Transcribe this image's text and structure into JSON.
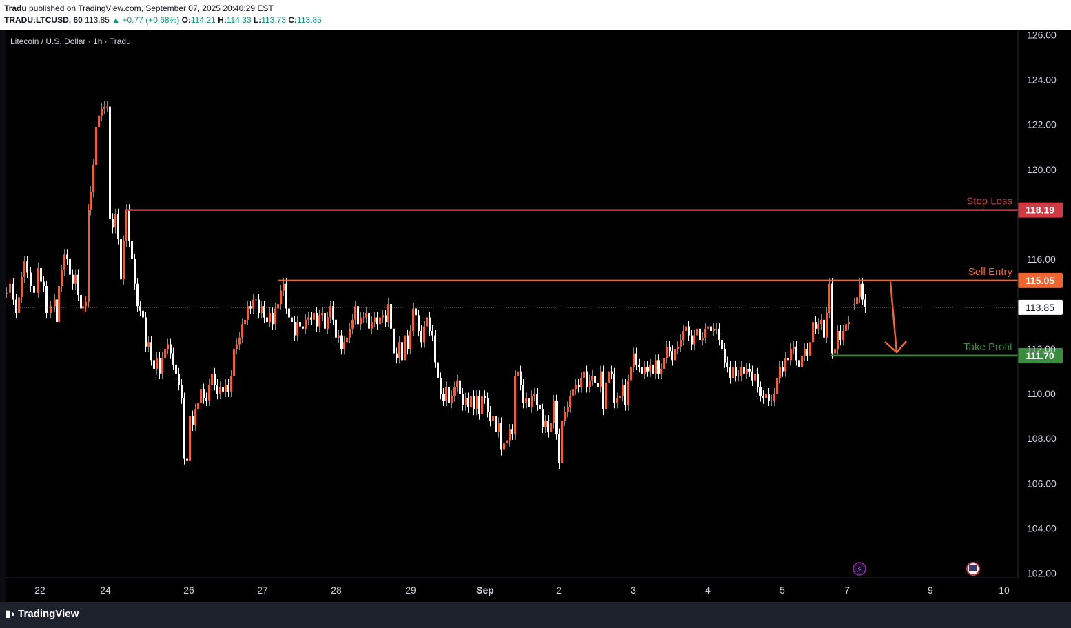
{
  "header": {
    "author": "Tradu",
    "published_text": "published on TradingView.com, September 07, 2025 20:40:29 EST",
    "symbol": "TRADU:LTCUSD, 60",
    "last": "113.85",
    "change": "▲ +0.77 (+0.68%)",
    "o_label": "O:",
    "o": "114.21",
    "h_label": "H:",
    "h": "114.33",
    "l_label": "L:",
    "l": "113.73",
    "c_label": "C:",
    "c": "113.85"
  },
  "footer": {
    "brand": "TradingView"
  },
  "colors": {
    "up": "#e8613a",
    "down": "#ffffff",
    "stop": "#d03a44",
    "entry": "#f0652f",
    "target": "#388e3c",
    "accent": "#089981"
  },
  "chart_data": {
    "type": "candlestick",
    "title": "Litecoin / U.S. Dollar · 1h · Tradu",
    "ylim": [
      101.8,
      126.2
    ],
    "y_ticks": [
      "102.00",
      "104.00",
      "106.00",
      "108.00",
      "110.00",
      "112.00",
      "116.00",
      "120.00",
      "122.00",
      "124.00",
      "126.00"
    ],
    "x_ticks": [
      "22",
      "24",
      "26",
      "27",
      "28",
      "29",
      "Sep",
      "2",
      "3",
      "4",
      "5",
      "7",
      "9",
      "10"
    ],
    "last_price": "113.85",
    "levels": [
      {
        "label": "Stop Loss",
        "value": "118.19",
        "color": "#d03a44"
      },
      {
        "label": "Sell Entry",
        "value": "115.05",
        "color": "#f0652f"
      },
      {
        "label": "Take Profit",
        "value": "111.70",
        "color": "#388e3c"
      }
    ],
    "price_path": [
      [
        0,
        114.5
      ],
      [
        5,
        114.9
      ],
      [
        10,
        114.2
      ],
      [
        14,
        113.6
      ],
      [
        18,
        114.3
      ],
      [
        22,
        115.2
      ],
      [
        26,
        115.9
      ],
      [
        30,
        115.4
      ],
      [
        35,
        114.8
      ],
      [
        40,
        114.5
      ],
      [
        46,
        115.6
      ],
      [
        50,
        115.0
      ],
      [
        54,
        114.8
      ],
      [
        58,
        113.6
      ],
      [
        64,
        113.9
      ],
      [
        70,
        114.2
      ],
      [
        73,
        113.2
      ],
      [
        76,
        114.8
      ],
      [
        80,
        115.5
      ],
      [
        84,
        116.2
      ],
      [
        88,
        116.0
      ],
      [
        92,
        115.3
      ],
      [
        96,
        114.9
      ],
      [
        100,
        115.3
      ],
      [
        104,
        114.4
      ],
      [
        108,
        113.8
      ],
      [
        111,
        113.9
      ],
      [
        115,
        114.1
      ],
      [
        119,
        118.2
      ],
      [
        122,
        119.0
      ],
      [
        126,
        120.2
      ],
      [
        130,
        121.9
      ],
      [
        134,
        122.4
      ],
      [
        138,
        122.7
      ],
      [
        142,
        122.8
      ],
      [
        146,
        122.8
      ],
      [
        150,
        117.8
      ],
      [
        154,
        117.4
      ],
      [
        158,
        118.0
      ],
      [
        162,
        116.9
      ],
      [
        166,
        115.1
      ],
      [
        170,
        116.8
      ],
      [
        174,
        118.2
      ],
      [
        178,
        116.8
      ],
      [
        182,
        116.0
      ],
      [
        186,
        114.9
      ],
      [
        190,
        113.9
      ],
      [
        194,
        113.7
      ],
      [
        198,
        113.4
      ],
      [
        202,
        112.1
      ],
      [
        206,
        112.3
      ],
      [
        210,
        111.5
      ],
      [
        214,
        111.1
      ],
      [
        218,
        111.6
      ],
      [
        222,
        110.9
      ],
      [
        226,
        111.6
      ],
      [
        230,
        112.0
      ],
      [
        234,
        112.2
      ],
      [
        238,
        111.8
      ],
      [
        242,
        111.3
      ],
      [
        246,
        110.9
      ],
      [
        250,
        110.4
      ],
      [
        254,
        109.8
      ],
      [
        258,
        107.1
      ],
      [
        262,
        107.0
      ],
      [
        266,
        109.0
      ],
      [
        270,
        108.6
      ],
      [
        274,
        109.3
      ],
      [
        278,
        109.6
      ],
      [
        282,
        110.2
      ],
      [
        286,
        109.8
      ],
      [
        290,
        109.7
      ],
      [
        294,
        110.4
      ],
      [
        298,
        110.9
      ],
      [
        302,
        110.4
      ],
      [
        306,
        110.0
      ],
      [
        310,
        110.3
      ],
      [
        314,
        110.1
      ],
      [
        318,
        110.4
      ],
      [
        322,
        110.1
      ],
      [
        326,
        110.8
      ],
      [
        330,
        112.0
      ],
      [
        334,
        112.2
      ],
      [
        338,
        112.5
      ],
      [
        342,
        113.1
      ],
      [
        346,
        113.3
      ],
      [
        350,
        113.9
      ],
      [
        354,
        113.8
      ],
      [
        358,
        114.2
      ],
      [
        362,
        114.2
      ],
      [
        366,
        113.6
      ],
      [
        370,
        113.9
      ],
      [
        374,
        113.4
      ],
      [
        378,
        113.2
      ],
      [
        382,
        113.6
      ],
      [
        386,
        113.1
      ],
      [
        390,
        113.8
      ],
      [
        394,
        114.0
      ],
      [
        398,
        114.6
      ],
      [
        402,
        114.9
      ],
      [
        406,
        113.8
      ],
      [
        410,
        113.4
      ],
      [
        414,
        113.2
      ],
      [
        418,
        112.6
      ],
      [
        422,
        113.2
      ],
      [
        426,
        113.0
      ],
      [
        430,
        112.9
      ],
      [
        434,
        113.3
      ],
      [
        438,
        113.4
      ],
      [
        442,
        113.3
      ],
      [
        446,
        113.6
      ],
      [
        450,
        113.0
      ],
      [
        454,
        113.5
      ],
      [
        458,
        113.6
      ],
      [
        462,
        112.9
      ],
      [
        466,
        113.4
      ],
      [
        470,
        113.9
      ],
      [
        474,
        113.3
      ],
      [
        478,
        112.5
      ],
      [
        482,
        112.6
      ],
      [
        486,
        112.0
      ],
      [
        490,
        112.3
      ],
      [
        494,
        112.5
      ],
      [
        498,
        112.9
      ],
      [
        502,
        113.3
      ],
      [
        506,
        113.9
      ],
      [
        510,
        113.1
      ],
      [
        514,
        113.4
      ],
      [
        518,
        113.4
      ],
      [
        522,
        113.6
      ],
      [
        526,
        112.9
      ],
      [
        530,
        113.2
      ],
      [
        534,
        113.4
      ],
      [
        538,
        113.1
      ],
      [
        542,
        113.4
      ],
      [
        546,
        113.5
      ],
      [
        550,
        113.2
      ],
      [
        554,
        114.0
      ],
      [
        558,
        112.9
      ],
      [
        562,
        111.8
      ],
      [
        566,
        111.6
      ],
      [
        570,
        112.3
      ],
      [
        574,
        111.5
      ],
      [
        578,
        112.6
      ],
      [
        582,
        112.0
      ],
      [
        586,
        112.8
      ],
      [
        590,
        113.8
      ],
      [
        594,
        113.5
      ],
      [
        598,
        112.8
      ],
      [
        602,
        112.3
      ],
      [
        606,
        113.0
      ],
      [
        610,
        113.4
      ],
      [
        614,
        112.8
      ],
      [
        618,
        112.6
      ],
      [
        622,
        111.4
      ],
      [
        626,
        110.7
      ],
      [
        630,
        110.0
      ],
      [
        634,
        109.7
      ],
      [
        638,
        110.3
      ],
      [
        642,
        109.6
      ],
      [
        646,
        109.9
      ],
      [
        650,
        110.3
      ],
      [
        654,
        110.6
      ],
      [
        658,
        110.0
      ],
      [
        662,
        109.5
      ],
      [
        666,
        109.8
      ],
      [
        670,
        109.4
      ],
      [
        674,
        109.9
      ],
      [
        678,
        109.3
      ],
      [
        682,
        109.9
      ],
      [
        686,
        109.1
      ],
      [
        690,
        109.9
      ],
      [
        694,
        109.8
      ],
      [
        698,
        109.2
      ],
      [
        702,
        108.8
      ],
      [
        706,
        109.0
      ],
      [
        710,
        108.3
      ],
      [
        714,
        108.7
      ],
      [
        718,
        107.5
      ],
      [
        722,
        107.8
      ],
      [
        726,
        107.9
      ],
      [
        730,
        108.4
      ],
      [
        734,
        108.2
      ],
      [
        738,
        110.8
      ],
      [
        742,
        111.0
      ],
      [
        746,
        110.4
      ],
      [
        750,
        109.6
      ],
      [
        754,
        109.8
      ],
      [
        758,
        109.4
      ],
      [
        762,
        109.9
      ],
      [
        766,
        110.0
      ],
      [
        770,
        109.5
      ],
      [
        774,
        109.3
      ],
      [
        778,
        108.5
      ],
      [
        782,
        108.8
      ],
      [
        786,
        108.3
      ],
      [
        790,
        108.7
      ],
      [
        794,
        109.7
      ],
      [
        798,
        108.2
      ],
      [
        802,
        106.9
      ],
      [
        806,
        108.8
      ],
      [
        810,
        109.2
      ],
      [
        814,
        109.4
      ],
      [
        818,
        109.9
      ],
      [
        822,
        110.2
      ],
      [
        826,
        110.4
      ],
      [
        830,
        110.3
      ],
      [
        834,
        110.7
      ],
      [
        838,
        111.0
      ],
      [
        842,
        110.3
      ],
      [
        846,
        110.6
      ],
      [
        850,
        110.8
      ],
      [
        854,
        110.5
      ],
      [
        858,
        110.3
      ],
      [
        862,
        111.0
      ],
      [
        866,
        109.3
      ],
      [
        870,
        110.5
      ],
      [
        874,
        111.0
      ],
      [
        878,
        110.9
      ],
      [
        882,
        109.6
      ],
      [
        886,
        109.8
      ],
      [
        890,
        109.9
      ],
      [
        894,
        110.4
      ],
      [
        898,
        109.5
      ],
      [
        902,
        110.6
      ],
      [
        906,
        111.2
      ],
      [
        910,
        111.8
      ],
      [
        914,
        111.3
      ],
      [
        918,
        111.2
      ],
      [
        922,
        110.9
      ],
      [
        926,
        111.2
      ],
      [
        930,
        111.0
      ],
      [
        934,
        111.3
      ],
      [
        938,
        110.9
      ],
      [
        942,
        111.5
      ],
      [
        946,
        110.9
      ],
      [
        950,
        111.1
      ],
      [
        954,
        111.6
      ],
      [
        958,
        112.1
      ],
      [
        962,
        111.9
      ],
      [
        966,
        111.5
      ],
      [
        970,
        112.0
      ],
      [
        974,
        112.1
      ],
      [
        978,
        112.4
      ],
      [
        982,
        112.8
      ],
      [
        986,
        113.0
      ],
      [
        990,
        112.6
      ],
      [
        994,
        112.2
      ],
      [
        998,
        112.6
      ],
      [
        1002,
        112.9
      ],
      [
        1006,
        112.4
      ],
      [
        1010,
        112.5
      ],
      [
        1014,
        112.9
      ],
      [
        1018,
        113.0
      ],
      [
        1022,
        112.8
      ],
      [
        1026,
        112.9
      ],
      [
        1030,
        112.9
      ],
      [
        1034,
        112.4
      ],
      [
        1038,
        112.0
      ],
      [
        1042,
        111.4
      ],
      [
        1046,
        111.2
      ],
      [
        1050,
        110.7
      ],
      [
        1054,
        111.2
      ],
      [
        1058,
        110.8
      ],
      [
        1062,
        110.8
      ],
      [
        1066,
        111.2
      ],
      [
        1070,
        110.9
      ],
      [
        1074,
        111.1
      ],
      [
        1078,
        111.0
      ],
      [
        1082,
        110.6
      ],
      [
        1086,
        110.9
      ],
      [
        1090,
        110.3
      ],
      [
        1094,
        109.9
      ],
      [
        1098,
        109.8
      ],
      [
        1102,
        110.0
      ],
      [
        1106,
        109.7
      ],
      [
        1110,
        109.7
      ],
      [
        1114,
        110.0
      ],
      [
        1118,
        110.7
      ],
      [
        1122,
        111.2
      ],
      [
        1126,
        111.0
      ],
      [
        1130,
        111.6
      ],
      [
        1134,
        111.5
      ],
      [
        1138,
        112.0
      ],
      [
        1142,
        112.1
      ],
      [
        1146,
        111.5
      ],
      [
        1150,
        111.2
      ],
      [
        1154,
        111.7
      ],
      [
        1158,
        112.0
      ],
      [
        1162,
        111.7
      ],
      [
        1166,
        112.3
      ],
      [
        1170,
        113.2
      ],
      [
        1174,
        112.9
      ],
      [
        1178,
        113.1
      ],
      [
        1182,
        113.3
      ],
      [
        1186,
        112.5
      ],
      [
        1190,
        113.6
      ],
      [
        1194,
        114.9
      ],
      [
        1198,
        111.8
      ],
      [
        1202,
        112.0
      ],
      [
        1206,
        112.8
      ],
      [
        1210,
        112.4
      ],
      [
        1214,
        112.8
      ],
      [
        1218,
        113.1
      ],
      [
        1222,
        113.2
      ],
      [
        1226,
        null
      ],
      [
        1230,
        114.0
      ],
      [
        1234,
        114.3
      ],
      [
        1238,
        114.9
      ],
      [
        1242,
        114.2
      ],
      [
        1246,
        113.85
      ]
    ]
  }
}
